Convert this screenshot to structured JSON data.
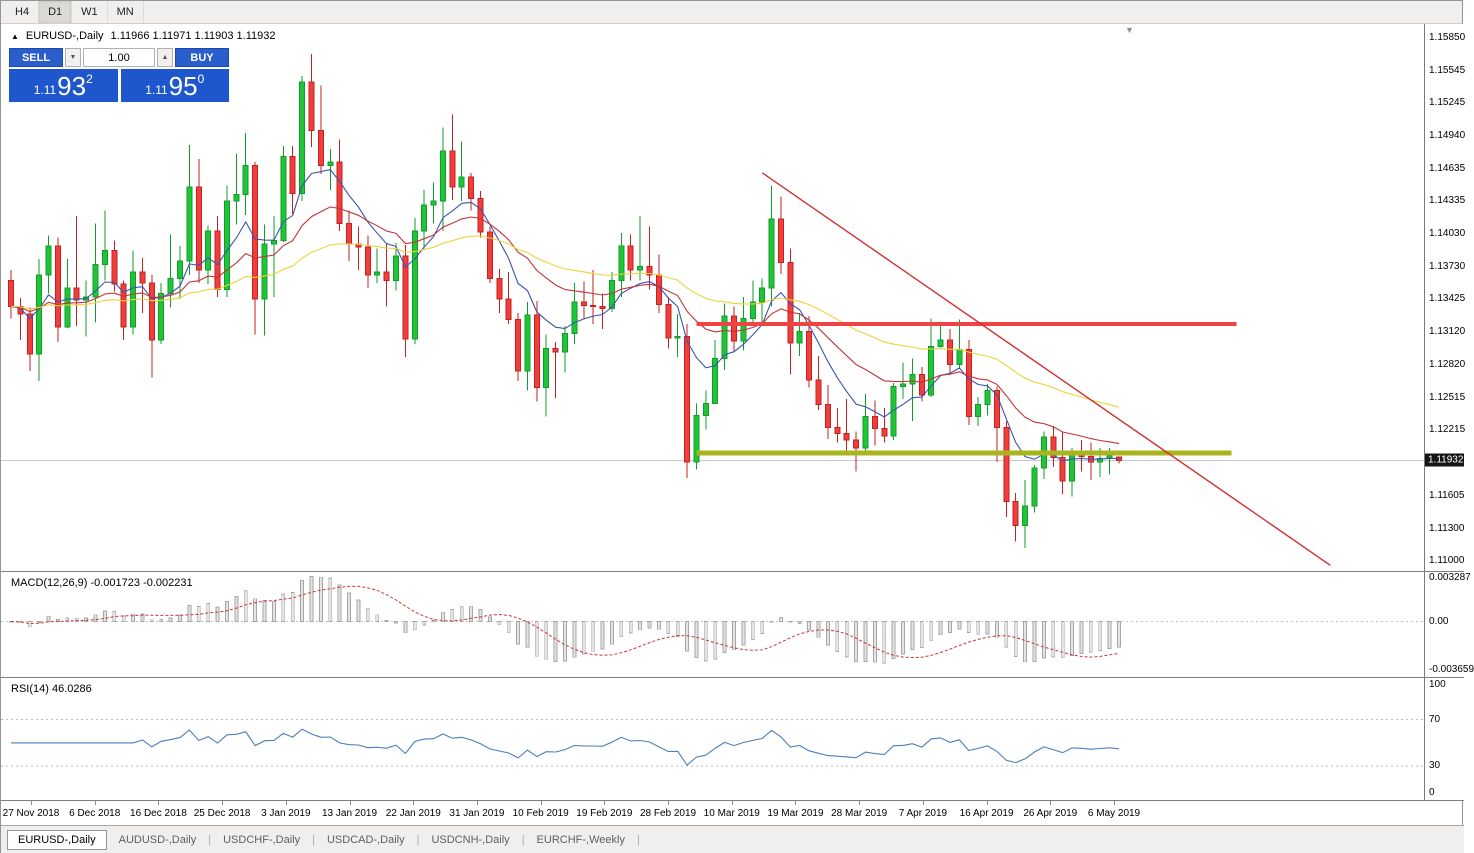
{
  "toolbar": {
    "timeframes": [
      {
        "label": "H4",
        "active": false
      },
      {
        "label": "D1",
        "active": true
      },
      {
        "label": "W1",
        "active": false
      },
      {
        "label": "MN",
        "active": false
      }
    ]
  },
  "chart_header": {
    "collapse_icon": "▲",
    "shift_icon": "▼",
    "symbol_period": "EURUSD-,Daily",
    "ohlc_text": "1.11966 1.11971 1.11903 1.11932"
  },
  "trade_panel": {
    "sell_label": "SELL",
    "buy_label": "BUY",
    "volume": "1.00",
    "volume_down_icon": "▼",
    "volume_up_icon": "▲",
    "sell_price": {
      "prefix": "1.11",
      "pips": "93",
      "point": "2"
    },
    "buy_price": {
      "prefix": "1.11",
      "pips": "95",
      "point": "0"
    },
    "button_color": "#2a5ecb",
    "price_box_color": "#1e56cd"
  },
  "price_axis": {
    "labels": [
      "1.15850",
      "1.15545",
      "1.15245",
      "1.14940",
      "1.14635",
      "1.14335",
      "1.14030",
      "1.13730",
      "1.13425",
      "1.13120",
      "1.12820",
      "1.12515",
      "1.12215",
      "1.11605",
      "1.11300",
      "1.11000"
    ],
    "current_label": "1.11932",
    "current_value": 1.11932
  },
  "macd_panel": {
    "label": "MACD(12,26,9) -0.001723 -0.002231",
    "values": {
      "macd": -0.001723,
      "signal": -0.002231
    },
    "axis_labels": [
      "0.003287",
      "0.00",
      "-0.003659"
    ]
  },
  "rsi_panel": {
    "label": "RSI(14) 46.0286",
    "value": 46.0286,
    "axis_labels": [
      "100",
      "70",
      "30",
      "0"
    ]
  },
  "tabs": [
    {
      "label": "EURUSD-,Daily",
      "active": true
    },
    {
      "label": "AUDUSD-,Daily",
      "active": false
    },
    {
      "label": "USDCHF-,Daily",
      "active": false
    },
    {
      "label": "USDCAD-,Daily",
      "active": false
    },
    {
      "label": "USDCNH-,Daily",
      "active": false
    },
    {
      "label": "EURCHF-,Weekly",
      "active": false
    }
  ],
  "chart_data": {
    "type": "candlestick",
    "title": "EURUSD-,Daily",
    "ohlc_order": "open,high,low,close",
    "ylim": [
      1.10907,
      1.1598
    ],
    "x_tick_labels": [
      "27 Nov 2018",
      "6 Dec 2018",
      "16 Dec 2018",
      "25 Dec 2018",
      "3 Jan 2019",
      "13 Jan 2019",
      "22 Jan 2019",
      "31 Jan 2019",
      "10 Feb 2019",
      "19 Feb 2019",
      "28 Feb 2019",
      "10 Mar 2019",
      "19 Mar 2019",
      "28 Mar 2019",
      "7 Apr 2019",
      "16 Apr 2019",
      "26 Apr 2019",
      "6 May 2019"
    ],
    "bull_color": "#21c437",
    "bull_stroke": "#119e28",
    "bear_color": "#ef3e3c",
    "bear_stroke": "#c32220",
    "ohlc": [
      [
        1.136,
        1.137,
        1.1325,
        1.1336
      ],
      [
        1.1336,
        1.1344,
        1.1305,
        1.1329
      ],
      [
        1.1329,
        1.1335,
        1.1276,
        1.1292
      ],
      [
        1.1292,
        1.138,
        1.1267,
        1.1365
      ],
      [
        1.1365,
        1.1402,
        1.1348,
        1.1392
      ],
      [
        1.1392,
        1.14,
        1.1303,
        1.1317
      ],
      [
        1.1317,
        1.138,
        1.1316,
        1.1353
      ],
      [
        1.1353,
        1.142,
        1.1318,
        1.1342
      ],
      [
        1.1342,
        1.136,
        1.1308,
        1.1345
      ],
      [
        1.1345,
        1.1413,
        1.1321,
        1.1375
      ],
      [
        1.1375,
        1.1425,
        1.136,
        1.1388
      ],
      [
        1.1388,
        1.1397,
        1.135,
        1.1357
      ],
      [
        1.1357,
        1.136,
        1.1305,
        1.1317
      ],
      [
        1.1317,
        1.1388,
        1.131,
        1.1368
      ],
      [
        1.1368,
        1.1381,
        1.133,
        1.1358
      ],
      [
        1.1358,
        1.1365,
        1.127,
        1.1305
      ],
      [
        1.1305,
        1.1358,
        1.1301,
        1.1348
      ],
      [
        1.1348,
        1.1403,
        1.1335,
        1.1362
      ],
      [
        1.1362,
        1.1392,
        1.1343,
        1.1378
      ],
      [
        1.1378,
        1.1486,
        1.1365,
        1.1447
      ],
      [
        1.1447,
        1.1473,
        1.1358,
        1.137
      ],
      [
        1.137,
        1.1411,
        1.1357,
        1.1406
      ],
      [
        1.1406,
        1.142,
        1.1345,
        1.1352
      ],
      [
        1.1352,
        1.1448,
        1.1345,
        1.1434
      ],
      [
        1.1434,
        1.1478,
        1.1412,
        1.144
      ],
      [
        1.144,
        1.1497,
        1.1421,
        1.1467
      ],
      [
        1.1467,
        1.147,
        1.131,
        1.1343
      ],
      [
        1.1343,
        1.1412,
        1.1309,
        1.1394
      ],
      [
        1.1394,
        1.142,
        1.1345,
        1.1397
      ],
      [
        1.1397,
        1.1485,
        1.1396,
        1.1475
      ],
      [
        1.1475,
        1.1485,
        1.1422,
        1.1441
      ],
      [
        1.1441,
        1.155,
        1.1434,
        1.1544
      ],
      [
        1.1544,
        1.157,
        1.1484,
        1.1499
      ],
      [
        1.1499,
        1.1541,
        1.1459,
        1.1467
      ],
      [
        1.1467,
        1.1482,
        1.1444,
        1.147
      ],
      [
        1.147,
        1.1491,
        1.1406,
        1.1413
      ],
      [
        1.1413,
        1.1425,
        1.1378,
        1.1394
      ],
      [
        1.1394,
        1.141,
        1.137,
        1.1391
      ],
      [
        1.1391,
        1.1402,
        1.1353,
        1.1365
      ],
      [
        1.1365,
        1.139,
        1.1358,
        1.1368
      ],
      [
        1.1368,
        1.1394,
        1.1336,
        1.136
      ],
      [
        1.136,
        1.1395,
        1.1351,
        1.1383
      ],
      [
        1.1383,
        1.1393,
        1.1289,
        1.1306
      ],
      [
        1.1306,
        1.1418,
        1.1301,
        1.1406
      ],
      [
        1.1406,
        1.1444,
        1.139,
        1.143
      ],
      [
        1.143,
        1.1451,
        1.1413,
        1.1434
      ],
      [
        1.1434,
        1.1502,
        1.1406,
        1.148
      ],
      [
        1.148,
        1.1514,
        1.1435,
        1.1447
      ],
      [
        1.1447,
        1.1489,
        1.1434,
        1.1456
      ],
      [
        1.1456,
        1.146,
        1.1425,
        1.1436
      ],
      [
        1.1436,
        1.1443,
        1.14,
        1.1405
      ],
      [
        1.1405,
        1.141,
        1.1358,
        1.1362
      ],
      [
        1.1362,
        1.1371,
        1.133,
        1.1343
      ],
      [
        1.1343,
        1.1368,
        1.132,
        1.1324
      ],
      [
        1.1324,
        1.133,
        1.1267,
        1.1276
      ],
      [
        1.1276,
        1.134,
        1.1258,
        1.1328
      ],
      [
        1.1328,
        1.1341,
        1.1248,
        1.1261
      ],
      [
        1.1261,
        1.131,
        1.1234,
        1.1297
      ],
      [
        1.1297,
        1.1303,
        1.1251,
        1.1294
      ],
      [
        1.1294,
        1.1318,
        1.1275,
        1.1311
      ],
      [
        1.1311,
        1.1358,
        1.1301,
        1.134
      ],
      [
        1.134,
        1.1359,
        1.1324,
        1.1337
      ],
      [
        1.1337,
        1.137,
        1.132,
        1.1336
      ],
      [
        1.1336,
        1.1348,
        1.1315,
        1.1334
      ],
      [
        1.1334,
        1.1368,
        1.1331,
        1.136
      ],
      [
        1.136,
        1.1404,
        1.1345,
        1.1392
      ],
      [
        1.1392,
        1.1403,
        1.136,
        1.137
      ],
      [
        1.137,
        1.142,
        1.136,
        1.1373
      ],
      [
        1.1373,
        1.141,
        1.1352,
        1.1365
      ],
      [
        1.1365,
        1.1384,
        1.133,
        1.1338
      ],
      [
        1.1338,
        1.1345,
        1.1297,
        1.1307
      ],
      [
        1.1307,
        1.1329,
        1.1289,
        1.1308
      ],
      [
        1.1308,
        1.132,
        1.1177,
        1.1192
      ],
      [
        1.1192,
        1.1246,
        1.1185,
        1.1235
      ],
      [
        1.1235,
        1.1258,
        1.1222,
        1.1246
      ],
      [
        1.1246,
        1.1305,
        1.1246,
        1.1288
      ],
      [
        1.1288,
        1.1339,
        1.1277,
        1.1327
      ],
      [
        1.1327,
        1.1336,
        1.1294,
        1.1304
      ],
      [
        1.1304,
        1.1345,
        1.1295,
        1.1325
      ],
      [
        1.1325,
        1.136,
        1.1318,
        1.134
      ],
      [
        1.134,
        1.1362,
        1.1321,
        1.1353
      ],
      [
        1.1353,
        1.1448,
        1.1336,
        1.1417
      ],
      [
        1.1417,
        1.1438,
        1.1366,
        1.1377
      ],
      [
        1.1377,
        1.139,
        1.1273,
        1.1302
      ],
      [
        1.1302,
        1.133,
        1.129,
        1.1313
      ],
      [
        1.1313,
        1.1327,
        1.1261,
        1.1268
      ],
      [
        1.1268,
        1.129,
        1.124,
        1.1245
      ],
      [
        1.1245,
        1.1263,
        1.1213,
        1.1224
      ],
      [
        1.1224,
        1.1242,
        1.121,
        1.1218
      ],
      [
        1.1218,
        1.125,
        1.12,
        1.1212
      ],
      [
        1.1212,
        1.122,
        1.1183,
        1.1205
      ],
      [
        1.1205,
        1.1255,
        1.12,
        1.1234
      ],
      [
        1.1234,
        1.1249,
        1.1207,
        1.1223
      ],
      [
        1.1223,
        1.1242,
        1.121,
        1.1216
      ],
      [
        1.1216,
        1.1265,
        1.1212,
        1.1262
      ],
      [
        1.1262,
        1.1284,
        1.125,
        1.1264
      ],
      [
        1.1264,
        1.1288,
        1.123,
        1.1273
      ],
      [
        1.1273,
        1.128,
        1.1248,
        1.1254
      ],
      [
        1.1254,
        1.1325,
        1.1252,
        1.1299
      ],
      [
        1.1299,
        1.132,
        1.1298,
        1.1305
      ],
      [
        1.1305,
        1.1315,
        1.1275,
        1.1282
      ],
      [
        1.1282,
        1.1324,
        1.1278,
        1.1296
      ],
      [
        1.1296,
        1.1305,
        1.1226,
        1.1234
      ],
      [
        1.1234,
        1.1252,
        1.1225,
        1.1245
      ],
      [
        1.1245,
        1.1264,
        1.1235,
        1.1258
      ],
      [
        1.1258,
        1.1262,
        1.1192,
        1.1224
      ],
      [
        1.1224,
        1.123,
        1.1141,
        1.1155
      ],
      [
        1.1155,
        1.1163,
        1.1118,
        1.1133
      ],
      [
        1.1133,
        1.1175,
        1.1112,
        1.1151
      ],
      [
        1.1151,
        1.1189,
        1.1145,
        1.1186
      ],
      [
        1.1186,
        1.122,
        1.1176,
        1.1215
      ],
      [
        1.1215,
        1.1225,
        1.1187,
        1.1196
      ],
      [
        1.1196,
        1.122,
        1.1162,
        1.1174
      ],
      [
        1.1174,
        1.1205,
        1.116,
        1.12
      ],
      [
        1.12,
        1.1212,
        1.1183,
        1.1197
      ],
      [
        1.1197,
        1.121,
        1.1175,
        1.1192
      ],
      [
        1.1192,
        1.1205,
        1.1178,
        1.1195
      ],
      [
        1.1195,
        1.1205,
        1.118,
        1.1198
      ],
      [
        1.11966,
        1.11971,
        1.11903,
        1.11932
      ]
    ],
    "overlays": {
      "current_price": 1.11932,
      "current_price_line_color": "#c8c8c8",
      "moving_averages": [
        {
          "type": "ema",
          "period": 8,
          "color": "#3a54b0"
        },
        {
          "type": "ema",
          "period": 20,
          "color": "#c13538"
        },
        {
          "type": "ema",
          "period": 45,
          "color": "#ecd339"
        }
      ],
      "trendline": {
        "i1": 80,
        "p1": 1.146,
        "i2": 140.5,
        "p2": 1.1096,
        "color": "#d03030",
        "width": 1.4
      },
      "resistance_line": {
        "i1": 73,
        "i2": 130.5,
        "price": 1.132,
        "color": "#ef4444",
        "width": 4
      },
      "support_line": {
        "i1": 73,
        "i2": 130,
        "price": 1.12,
        "color": "#a8b51e",
        "width": 5
      }
    },
    "indicators": {
      "macd": {
        "fast": 12,
        "slow": 26,
        "signal": 9,
        "ylim": [
          -0.003659,
          0.003287
        ],
        "bar_color": "#e4e4e4",
        "bar_stroke": "#a6a6a6",
        "signal_color": "#cc3535"
      },
      "rsi": {
        "period": 14,
        "ylim": [
          0,
          100
        ],
        "levels": [
          70,
          30
        ],
        "color": "#4a7fba",
        "level_color": "#bdbdbd"
      }
    }
  }
}
